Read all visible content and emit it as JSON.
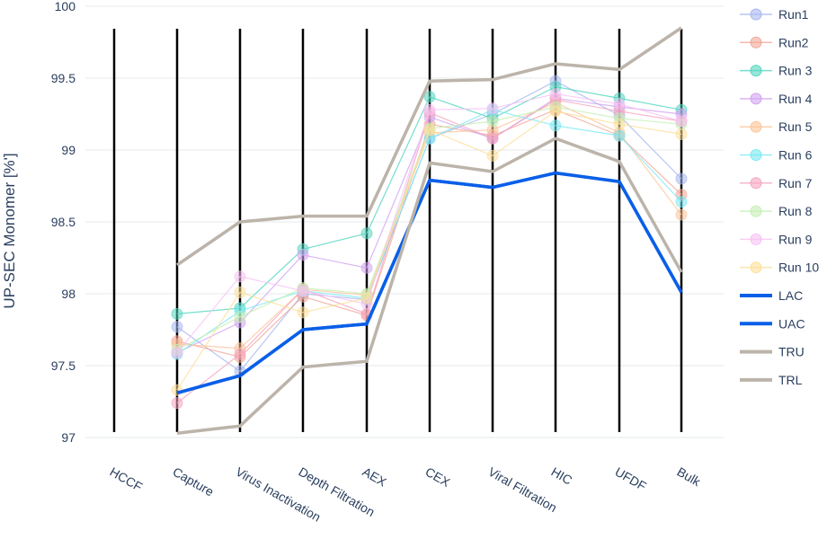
{
  "chart_data": {
    "type": "line",
    "ylabel": "UP-SEC Monomer [%']",
    "ylim": [
      97,
      100
    ],
    "yticks": [
      "97",
      "97.5",
      "98",
      "98.5",
      "99",
      "99.5",
      "100"
    ],
    "categories": [
      "HCCF",
      "Capture",
      "Virus Inactivation",
      "Depth Filtration",
      "AEX",
      "CEX",
      "Viral Filtration",
      "HIC",
      "UFDF",
      "Bulk"
    ],
    "grid": true,
    "legend_position": "right",
    "series": [
      {
        "name": "Run1",
        "color": "#a8b8f0",
        "values": [
          null,
          97.77,
          97.46,
          98.0,
          97.96,
          99.08,
          99.25,
          99.48,
          99.24,
          98.8
        ]
      },
      {
        "name": "Run2",
        "color": "#f4a898",
        "values": [
          null,
          97.67,
          97.56,
          97.98,
          97.85,
          99.18,
          99.1,
          99.28,
          99.1,
          98.69
        ]
      },
      {
        "name": "Run 3",
        "color": "#55d6c0",
        "values": [
          null,
          97.86,
          97.9,
          98.31,
          98.42,
          99.37,
          99.22,
          99.44,
          99.36,
          99.28
        ]
      },
      {
        "name": "Run 4",
        "color": "#d2a4f2",
        "values": [
          null,
          97.59,
          97.8,
          98.27,
          98.18,
          99.23,
          99.08,
          99.36,
          99.3,
          99.25
        ]
      },
      {
        "name": "Run 5",
        "color": "#fcc59a",
        "values": [
          null,
          97.65,
          97.62,
          98.03,
          97.99,
          99.12,
          99.14,
          99.33,
          99.12,
          98.55
        ]
      },
      {
        "name": "Run 6",
        "color": "#7aeaf4",
        "values": [
          null,
          97.58,
          97.88,
          98.02,
          97.97,
          99.08,
          99.28,
          99.17,
          99.1,
          98.64
        ]
      },
      {
        "name": "Run 7",
        "color": "#f5a6c0",
        "values": [
          null,
          97.24,
          97.58,
          98.03,
          97.86,
          99.26,
          99.08,
          99.35,
          99.27,
          99.2
        ]
      },
      {
        "name": "Run 8",
        "color": "#c6efb4",
        "values": [
          null,
          97.61,
          97.84,
          98.04,
          98.0,
          99.15,
          99.2,
          99.3,
          99.22,
          99.18
        ]
      },
      {
        "name": "Run 9",
        "color": "#f7c2f4",
        "values": [
          null,
          97.59,
          98.12,
          98.02,
          97.93,
          99.28,
          99.29,
          99.39,
          99.32,
          99.2
        ]
      },
      {
        "name": "Run 10",
        "color": "#fde09a",
        "values": [
          null,
          97.33,
          98.01,
          97.87,
          97.97,
          99.14,
          98.96,
          99.27,
          99.18,
          99.11
        ]
      },
      {
        "name": "LAC",
        "color": "#0a5fe8",
        "values": [
          null,
          97.31,
          97.43,
          97.75,
          97.79,
          98.79,
          98.74,
          98.84,
          98.78,
          98.01
        ]
      },
      {
        "name": "UAC",
        "color": "#0a5fe8",
        "values": [
          null,
          97.31,
          97.43,
          97.75,
          97.79,
          98.79,
          98.74,
          98.84,
          98.78,
          98.01
        ]
      },
      {
        "name": "TRU",
        "color": "#bcb4aa",
        "values": [
          null,
          98.2,
          98.5,
          98.54,
          98.54,
          99.48,
          99.49,
          99.6,
          99.56,
          99.85
        ]
      },
      {
        "name": "TRL",
        "color": "#bcb4aa",
        "values": [
          null,
          97.03,
          97.08,
          97.49,
          97.53,
          98.91,
          98.85,
          99.08,
          98.92,
          98.15
        ]
      }
    ]
  }
}
